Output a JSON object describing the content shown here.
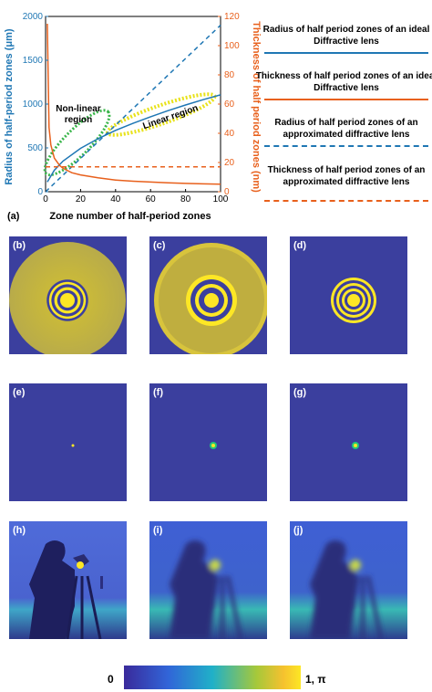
{
  "chart_data": {
    "type": "line",
    "xlabel": "Zone number of half-period zones",
    "ylabel_left": "Radius of half-period zones (μm)",
    "ylabel_right": "Thickness of half period zones (nm)",
    "xlim": [
      0,
      100
    ],
    "ylim_left": [
      0,
      2000
    ],
    "ylim_right": [
      0,
      120
    ],
    "x_ticks": [
      "0",
      "20",
      "40",
      "60",
      "80",
      "100"
    ],
    "y_left_ticks": [
      "0",
      "500",
      "1000",
      "1500",
      "2000"
    ],
    "y_right_ticks": [
      "0",
      "20",
      "40",
      "60",
      "80",
      "100",
      "120"
    ],
    "annotations": [
      "Non-linear region",
      "Linear region"
    ],
    "series": [
      {
        "name": "Radius of half period zones of an ideal Diffractive lens",
        "axis": "left",
        "color": "#1f77b4",
        "style": "solid",
        "x": [
          1,
          5,
          10,
          20,
          30,
          40,
          50,
          60,
          70,
          80,
          90,
          100
        ],
        "values": [
          110,
          245,
          350,
          495,
          605,
          700,
          780,
          855,
          925,
          990,
          1050,
          1105
        ]
      },
      {
        "name": "Thickness of half period zones of an ideal Diffractive lens",
        "axis": "right",
        "color": "#e8601c",
        "style": "solid",
        "x": [
          1,
          2,
          3,
          5,
          8,
          10,
          15,
          20,
          30,
          40,
          50,
          60,
          70,
          80,
          90,
          100
        ],
        "values": [
          115,
          44,
          32,
          23,
          18,
          16,
          13,
          11.5,
          9.5,
          8,
          7.2,
          6.6,
          6.1,
          5.7,
          5.4,
          5.1
        ]
      },
      {
        "name": "Radius of half period zones of an approximated diffractive lens",
        "axis": "left",
        "color": "#1f77b4",
        "style": "dashed",
        "x": [
          0,
          100
        ],
        "values": [
          0,
          1900
        ]
      },
      {
        "name": "Thickness of half period zones of an approximated diffractive lens",
        "axis": "right",
        "color": "#e8601c",
        "style": "dashed",
        "x": [
          0,
          100
        ],
        "values": [
          17,
          17
        ]
      }
    ]
  },
  "panel_a_label": "(a)",
  "legend": [
    "Radius of half period zones of an ideal Diffractive lens",
    "Thickness of half period zones of an ideal Diffractive lens",
    "Radius of half period zones of an approximated diffractive lens",
    "Thickness of half period zones of an approximated diffractive lens"
  ],
  "panels": {
    "b": "(b)",
    "c": "(c)",
    "d": "(d)",
    "e": "(e)",
    "f": "(f)",
    "g": "(g)",
    "h": "(h)",
    "i": "(i)",
    "j": "(j)"
  },
  "colorbar": {
    "min_label": "0",
    "max_label": "1, π"
  },
  "colors": {
    "blue": "#1f77b4",
    "orange": "#e8601c",
    "bg": "#3b3f9e",
    "yellow": "#fde725"
  }
}
